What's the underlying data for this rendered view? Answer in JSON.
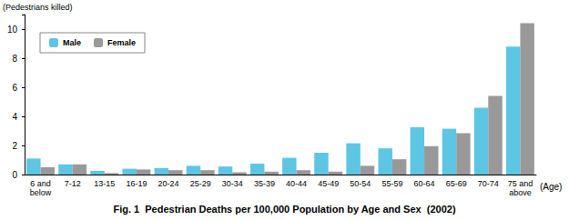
{
  "chart_data": {
    "type": "bar",
    "title": "Fig. 1  Pedestrian Deaths per 100,000 Population by Age and Sex  (2002)",
    "ylabel": "(Pedestrians killed)",
    "xlabel": "(Age)",
    "categories": [
      "6 and\nbelow",
      "7-12",
      "13-15",
      "16-19",
      "20-24",
      "25-29",
      "30-34",
      "35-39",
      "40-44",
      "45-49",
      "50-54",
      "55-59",
      "60-64",
      "65-69",
      "70-74",
      "75 and\nabove"
    ],
    "series": [
      {
        "name": "Male",
        "color": "#5cc6e4",
        "values": [
          1.1,
          0.7,
          0.25,
          0.4,
          0.45,
          0.6,
          0.55,
          0.75,
          1.15,
          1.5,
          2.15,
          1.8,
          3.25,
          3.15,
          4.6,
          8.8
        ]
      },
      {
        "name": "Female",
        "color": "#999999",
        "values": [
          0.5,
          0.7,
          0.1,
          0.35,
          0.3,
          0.3,
          0.15,
          0.2,
          0.3,
          0.2,
          0.6,
          1.05,
          1.95,
          2.85,
          5.4,
          10.4
        ]
      }
    ],
    "ylim": [
      0,
      11
    ],
    "yticks": [
      0,
      2,
      4,
      6,
      8,
      10
    ],
    "grid": false,
    "legend": "upper left"
  }
}
